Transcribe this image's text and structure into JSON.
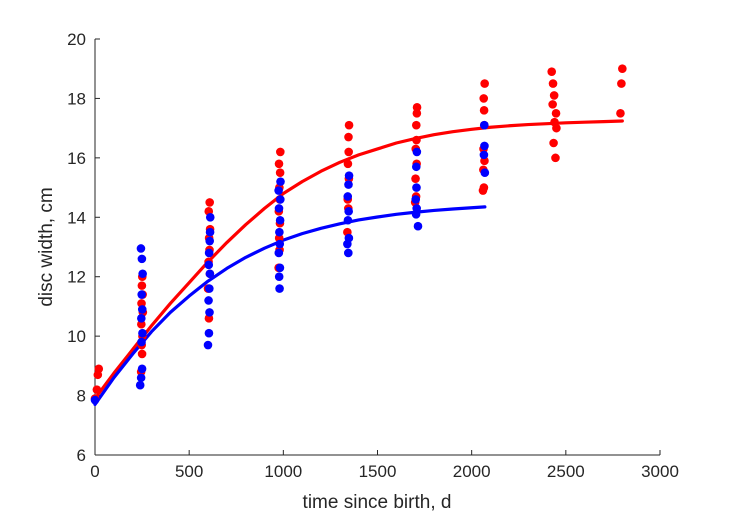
{
  "chart_data": {
    "type": "scatter",
    "title": "",
    "xlabel": "time since birth, d",
    "ylabel": "disc width, cm",
    "xlim": [
      0,
      3000
    ],
    "ylim": [
      6,
      20
    ],
    "xticks": [
      0,
      500,
      1000,
      1500,
      2000,
      2500,
      3000
    ],
    "yticks": [
      6,
      8,
      10,
      12,
      14,
      16,
      18,
      20
    ],
    "grid": false,
    "legend": "none",
    "series": [
      {
        "color": "#ff0000",
        "marker": "circle",
        "points": [
          {
            "x": 0,
            "y": 7.9
          },
          {
            "x": 10,
            "y": 8.2
          },
          {
            "x": 15,
            "y": 8.7
          },
          {
            "x": 20,
            "y": 8.9
          },
          {
            "x": 245,
            "y": 8.8
          },
          {
            "x": 250,
            "y": 9.4
          },
          {
            "x": 248,
            "y": 9.7
          },
          {
            "x": 252,
            "y": 10.0
          },
          {
            "x": 246,
            "y": 10.4
          },
          {
            "x": 254,
            "y": 10.8
          },
          {
            "x": 247,
            "y": 11.1
          },
          {
            "x": 253,
            "y": 11.4
          },
          {
            "x": 249,
            "y": 11.7
          },
          {
            "x": 251,
            "y": 12.0
          },
          {
            "x": 605,
            "y": 10.6
          },
          {
            "x": 600,
            "y": 11.6
          },
          {
            "x": 610,
            "y": 12.1
          },
          {
            "x": 603,
            "y": 12.5
          },
          {
            "x": 608,
            "y": 12.9
          },
          {
            "x": 606,
            "y": 13.3
          },
          {
            "x": 611,
            "y": 13.6
          },
          {
            "x": 604,
            "y": 14.2
          },
          {
            "x": 609,
            "y": 14.5
          },
          {
            "x": 975,
            "y": 12.3
          },
          {
            "x": 980,
            "y": 12.9
          },
          {
            "x": 978,
            "y": 13.3
          },
          {
            "x": 982,
            "y": 13.8
          },
          {
            "x": 976,
            "y": 14.2
          },
          {
            "x": 981,
            "y": 14.6
          },
          {
            "x": 979,
            "y": 15.0
          },
          {
            "x": 983,
            "y": 15.5
          },
          {
            "x": 977,
            "y": 15.8
          },
          {
            "x": 984,
            "y": 16.2
          },
          {
            "x": 1340,
            "y": 13.5
          },
          {
            "x": 1345,
            "y": 14.3
          },
          {
            "x": 1342,
            "y": 14.6
          },
          {
            "x": 1348,
            "y": 15.3
          },
          {
            "x": 1343,
            "y": 15.8
          },
          {
            "x": 1347,
            "y": 16.2
          },
          {
            "x": 1346,
            "y": 16.7
          },
          {
            "x": 1349,
            "y": 17.1
          },
          {
            "x": 1700,
            "y": 14.5
          },
          {
            "x": 1705,
            "y": 14.7
          },
          {
            "x": 1702,
            "y": 15.3
          },
          {
            "x": 1708,
            "y": 15.8
          },
          {
            "x": 1703,
            "y": 16.3
          },
          {
            "x": 1707,
            "y": 16.6
          },
          {
            "x": 1706,
            "y": 17.1
          },
          {
            "x": 1709,
            "y": 17.5
          },
          {
            "x": 1710,
            "y": 17.7
          },
          {
            "x": 2060,
            "y": 14.9
          },
          {
            "x": 2065,
            "y": 15.0
          },
          {
            "x": 2062,
            "y": 15.6
          },
          {
            "x": 2068,
            "y": 15.9
          },
          {
            "x": 2063,
            "y": 16.3
          },
          {
            "x": 2067,
            "y": 17.1
          },
          {
            "x": 2066,
            "y": 17.6
          },
          {
            "x": 2064,
            "y": 18.0
          },
          {
            "x": 2069,
            "y": 18.5
          },
          {
            "x": 2445,
            "y": 16.0
          },
          {
            "x": 2435,
            "y": 16.5
          },
          {
            "x": 2450,
            "y": 17.0
          },
          {
            "x": 2440,
            "y": 17.2
          },
          {
            "x": 2448,
            "y": 17.5
          },
          {
            "x": 2430,
            "y": 17.8
          },
          {
            "x": 2438,
            "y": 18.1
          },
          {
            "x": 2432,
            "y": 18.5
          },
          {
            "x": 2425,
            "y": 18.9
          },
          {
            "x": 2790,
            "y": 17.5
          },
          {
            "x": 2795,
            "y": 18.5
          },
          {
            "x": 2800,
            "y": 19.0
          }
        ],
        "fit": [
          {
            "x": 0,
            "y": 7.9
          },
          {
            "x": 100,
            "y": 8.75
          },
          {
            "x": 200,
            "y": 9.55
          },
          {
            "x": 300,
            "y": 10.35
          },
          {
            "x": 400,
            "y": 11.1
          },
          {
            "x": 500,
            "y": 11.8
          },
          {
            "x": 600,
            "y": 12.5
          },
          {
            "x": 700,
            "y": 13.15
          },
          {
            "x": 800,
            "y": 13.75
          },
          {
            "x": 900,
            "y": 14.3
          },
          {
            "x": 1000,
            "y": 14.8
          },
          {
            "x": 1100,
            "y": 15.2
          },
          {
            "x": 1200,
            "y": 15.55
          },
          {
            "x": 1300,
            "y": 15.85
          },
          {
            "x": 1400,
            "y": 16.1
          },
          {
            "x": 1500,
            "y": 16.3
          },
          {
            "x": 1600,
            "y": 16.5
          },
          {
            "x": 1700,
            "y": 16.65
          },
          {
            "x": 1800,
            "y": 16.78
          },
          {
            "x": 1900,
            "y": 16.88
          },
          {
            "x": 2000,
            "y": 16.96
          },
          {
            "x": 2100,
            "y": 17.03
          },
          {
            "x": 2200,
            "y": 17.08
          },
          {
            "x": 2300,
            "y": 17.12
          },
          {
            "x": 2400,
            "y": 17.15
          },
          {
            "x": 2500,
            "y": 17.18
          },
          {
            "x": 2600,
            "y": 17.2
          },
          {
            "x": 2700,
            "y": 17.22
          },
          {
            "x": 2800,
            "y": 17.24
          }
        ]
      },
      {
        "color": "#0000ff",
        "marker": "circle",
        "points": [
          {
            "x": 0,
            "y": 7.85
          },
          {
            "x": 240,
            "y": 8.35
          },
          {
            "x": 245,
            "y": 8.6
          },
          {
            "x": 250,
            "y": 8.9
          },
          {
            "x": 247,
            "y": 9.8
          },
          {
            "x": 252,
            "y": 10.1
          },
          {
            "x": 246,
            "y": 10.6
          },
          {
            "x": 251,
            "y": 10.9
          },
          {
            "x": 248,
            "y": 11.4
          },
          {
            "x": 253,
            "y": 12.1
          },
          {
            "x": 249,
            "y": 12.6
          },
          {
            "x": 244,
            "y": 12.95
          },
          {
            "x": 600,
            "y": 9.7
          },
          {
            "x": 605,
            "y": 10.1
          },
          {
            "x": 608,
            "y": 10.8
          },
          {
            "x": 603,
            "y": 11.2
          },
          {
            "x": 607,
            "y": 11.6
          },
          {
            "x": 610,
            "y": 12.1
          },
          {
            "x": 604,
            "y": 12.4
          },
          {
            "x": 606,
            "y": 12.8
          },
          {
            "x": 609,
            "y": 13.2
          },
          {
            "x": 611,
            "y": 13.5
          },
          {
            "x": 612,
            "y": 14.0
          },
          {
            "x": 980,
            "y": 11.6
          },
          {
            "x": 978,
            "y": 12.0
          },
          {
            "x": 982,
            "y": 12.3
          },
          {
            "x": 976,
            "y": 12.8
          },
          {
            "x": 981,
            "y": 13.1
          },
          {
            "x": 979,
            "y": 13.5
          },
          {
            "x": 983,
            "y": 13.9
          },
          {
            "x": 977,
            "y": 14.3
          },
          {
            "x": 984,
            "y": 14.6
          },
          {
            "x": 975,
            "y": 14.9
          },
          {
            "x": 985,
            "y": 15.2
          },
          {
            "x": 1345,
            "y": 12.8
          },
          {
            "x": 1340,
            "y": 13.1
          },
          {
            "x": 1348,
            "y": 13.3
          },
          {
            "x": 1343,
            "y": 13.9
          },
          {
            "x": 1347,
            "y": 14.2
          },
          {
            "x": 1342,
            "y": 14.7
          },
          {
            "x": 1346,
            "y": 15.1
          },
          {
            "x": 1349,
            "y": 15.4
          },
          {
            "x": 1715,
            "y": 13.7
          },
          {
            "x": 1705,
            "y": 14.1
          },
          {
            "x": 1708,
            "y": 14.3
          },
          {
            "x": 1703,
            "y": 14.6
          },
          {
            "x": 1707,
            "y": 15.0
          },
          {
            "x": 1706,
            "y": 15.7
          },
          {
            "x": 1709,
            "y": 16.2
          },
          {
            "x": 2070,
            "y": 15.5
          },
          {
            "x": 2065,
            "y": 16.1
          },
          {
            "x": 2068,
            "y": 16.4
          },
          {
            "x": 2067,
            "y": 17.1
          }
        ],
        "fit": [
          {
            "x": 0,
            "y": 7.7
          },
          {
            "x": 100,
            "y": 8.6
          },
          {
            "x": 200,
            "y": 9.4
          },
          {
            "x": 300,
            "y": 10.15
          },
          {
            "x": 400,
            "y": 10.8
          },
          {
            "x": 500,
            "y": 11.35
          },
          {
            "x": 600,
            "y": 11.85
          },
          {
            "x": 700,
            "y": 12.28
          },
          {
            "x": 800,
            "y": 12.65
          },
          {
            "x": 900,
            "y": 12.96
          },
          {
            "x": 1000,
            "y": 13.23
          },
          {
            "x": 1100,
            "y": 13.45
          },
          {
            "x": 1200,
            "y": 13.63
          },
          {
            "x": 1300,
            "y": 13.78
          },
          {
            "x": 1400,
            "y": 13.91
          },
          {
            "x": 1500,
            "y": 14.01
          },
          {
            "x": 1600,
            "y": 14.1
          },
          {
            "x": 1700,
            "y": 14.17
          },
          {
            "x": 1800,
            "y": 14.23
          },
          {
            "x": 1900,
            "y": 14.28
          },
          {
            "x": 2000,
            "y": 14.32
          },
          {
            "x": 2070,
            "y": 14.35
          }
        ]
      }
    ]
  }
}
